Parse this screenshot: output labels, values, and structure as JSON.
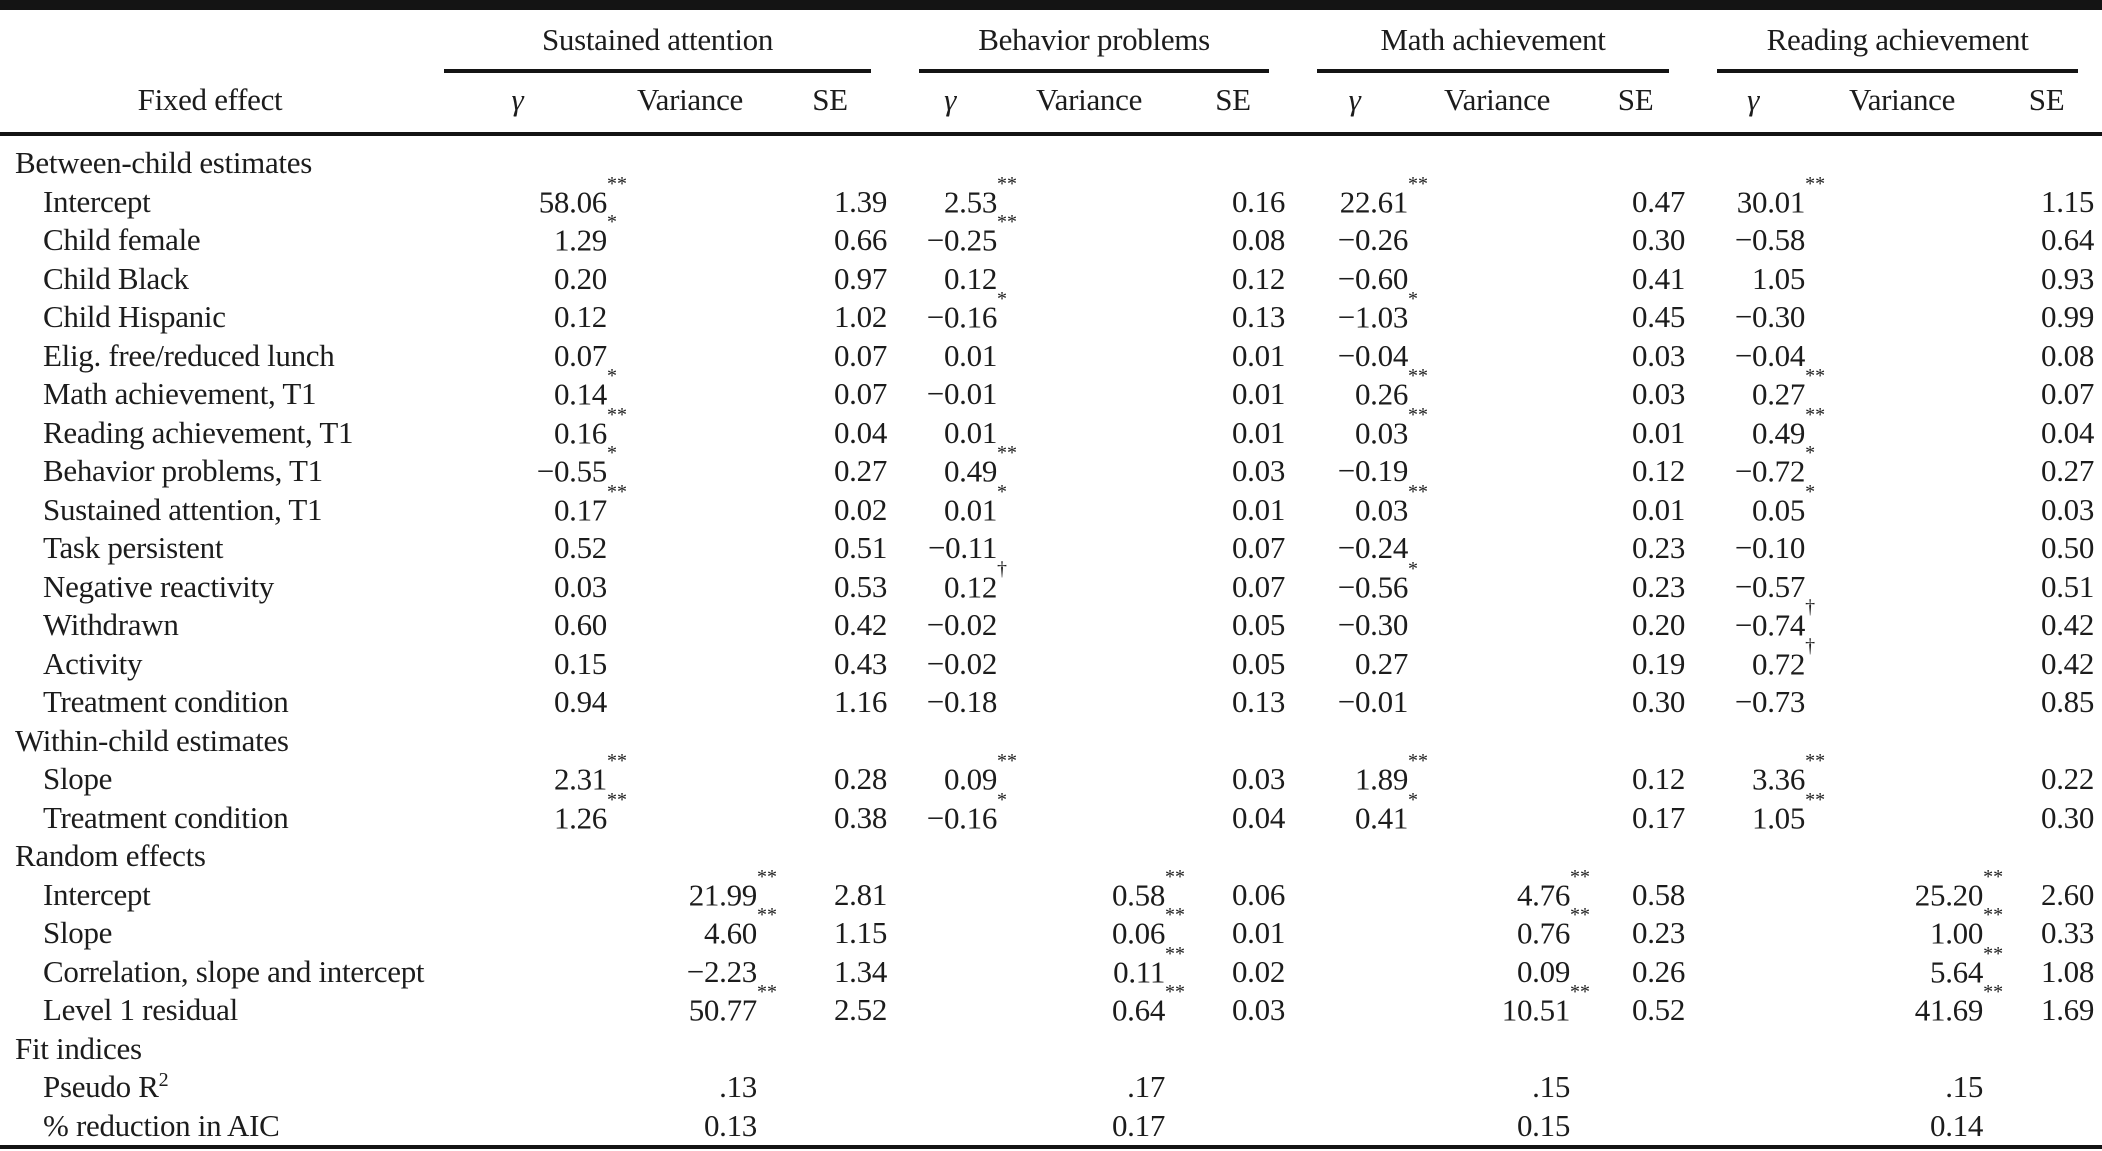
{
  "table": {
    "row_header": "Fixed effect",
    "groups": [
      {
        "label": "Sustained attention"
      },
      {
        "label": "Behavior problems"
      },
      {
        "label": "Math achievement"
      },
      {
        "label": "Reading achievement"
      }
    ],
    "sub_headers": [
      "γ",
      "Variance",
      "SE"
    ],
    "sig_legend": {
      "dagger": "†",
      "star": "*",
      "double_star": "**"
    },
    "rule_color": "#141414",
    "rows": [
      {
        "type": "section",
        "label": "Between-child estimates",
        "cells": [
          "",
          "",
          "",
          "",
          "",
          "",
          "",
          "",
          "",
          "",
          "",
          ""
        ]
      },
      {
        "type": "item",
        "label": "Intercept",
        "cells": [
          "58.06**",
          "",
          "1.39",
          "2.53**",
          "",
          "0.16",
          "22.61**",
          "",
          "0.47",
          "30.01**",
          "",
          "1.15"
        ]
      },
      {
        "type": "item",
        "label": "Child female",
        "cells": [
          "1.29*",
          "",
          "0.66",
          "−0.25**",
          "",
          "0.08",
          "−0.26",
          "",
          "0.30",
          "−0.58",
          "",
          "0.64"
        ]
      },
      {
        "type": "item",
        "label": "Child Black",
        "cells": [
          "0.20",
          "",
          "0.97",
          "0.12",
          "",
          "0.12",
          "−0.60",
          "",
          "0.41",
          "1.05",
          "",
          "0.93"
        ]
      },
      {
        "type": "item",
        "label": "Child Hispanic",
        "cells": [
          "0.12",
          "",
          "1.02",
          "−0.16*",
          "",
          "0.13",
          "−1.03*",
          "",
          "0.45",
          "−0.30",
          "",
          "0.99"
        ]
      },
      {
        "type": "item",
        "label": "Elig. free/reduced lunch",
        "cells": [
          "0.07",
          "",
          "0.07",
          "0.01",
          "",
          "0.01",
          "−0.04",
          "",
          "0.03",
          "−0.04",
          "",
          "0.08"
        ]
      },
      {
        "type": "item",
        "label": "Math achievement, T1",
        "cells": [
          "0.14*",
          "",
          "0.07",
          "−0.01",
          "",
          "0.01",
          "0.26**",
          "",
          "0.03",
          "0.27**",
          "",
          "0.07"
        ]
      },
      {
        "type": "item",
        "label": "Reading achievement, T1",
        "cells": [
          "0.16**",
          "",
          "0.04",
          "0.01",
          "",
          "0.01",
          "0.03**",
          "",
          "0.01",
          "0.49**",
          "",
          "0.04"
        ]
      },
      {
        "type": "item",
        "label": "Behavior problems, T1",
        "cells": [
          "−0.55*",
          "",
          "0.27",
          "0.49**",
          "",
          "0.03",
          "−0.19",
          "",
          "0.12",
          "−0.72*",
          "",
          "0.27"
        ]
      },
      {
        "type": "item",
        "label": "Sustained attention, T1",
        "cells": [
          "0.17**",
          "",
          "0.02",
          "0.01*",
          "",
          "0.01",
          "0.03**",
          "",
          "0.01",
          "0.05*",
          "",
          "0.03"
        ]
      },
      {
        "type": "item",
        "label": "Task persistent",
        "cells": [
          "0.52",
          "",
          "0.51",
          "−0.11",
          "",
          "0.07",
          "−0.24",
          "",
          "0.23",
          "−0.10",
          "",
          "0.50"
        ]
      },
      {
        "type": "item",
        "label": "Negative reactivity",
        "cells": [
          "0.03",
          "",
          "0.53",
          "0.12†",
          "",
          "0.07",
          "−0.56*",
          "",
          "0.23",
          "−0.57",
          "",
          "0.51"
        ]
      },
      {
        "type": "item",
        "label": "Withdrawn",
        "cells": [
          "0.60",
          "",
          "0.42",
          "−0.02",
          "",
          "0.05",
          "−0.30",
          "",
          "0.20",
          "−0.74†",
          "",
          "0.42"
        ]
      },
      {
        "type": "item",
        "label": "Activity",
        "cells": [
          "0.15",
          "",
          "0.43",
          "−0.02",
          "",
          "0.05",
          "0.27",
          "",
          "0.19",
          "0.72†",
          "",
          "0.42"
        ]
      },
      {
        "type": "item",
        "label": "Treatment condition",
        "cells": [
          "0.94",
          "",
          "1.16",
          "−0.18",
          "",
          "0.13",
          "−0.01",
          "",
          "0.30",
          "−0.73",
          "",
          "0.85"
        ]
      },
      {
        "type": "section",
        "label": "Within-child estimates",
        "cells": [
          "",
          "",
          "",
          "",
          "",
          "",
          "",
          "",
          "",
          "",
          "",
          ""
        ]
      },
      {
        "type": "item",
        "label": "Slope",
        "cells": [
          "2.31**",
          "",
          "0.28",
          "0.09**",
          "",
          "0.03",
          "1.89**",
          "",
          "0.12",
          "3.36**",
          "",
          "0.22"
        ]
      },
      {
        "type": "item",
        "label": "Treatment condition",
        "cells": [
          "1.26**",
          "",
          "0.38",
          "−0.16*",
          "",
          "0.04",
          "0.41*",
          "",
          "0.17",
          "1.05**",
          "",
          "0.30"
        ]
      },
      {
        "type": "section",
        "label": "Random effects",
        "cells": [
          "",
          "",
          "",
          "",
          "",
          "",
          "",
          "",
          "",
          "",
          "",
          ""
        ]
      },
      {
        "type": "item",
        "label": "Intercept",
        "cells": [
          "",
          "21.99**",
          "2.81",
          "",
          "0.58**",
          "0.06",
          "",
          "4.76**",
          "0.58",
          "",
          "25.20**",
          "2.60"
        ]
      },
      {
        "type": "item",
        "label": "Slope",
        "cells": [
          "",
          "4.60**",
          "1.15",
          "",
          "0.06**",
          "0.01",
          "",
          "0.76**",
          "0.23",
          "",
          "1.00**",
          "0.33"
        ]
      },
      {
        "type": "item",
        "label": "Correlation, slope and intercept",
        "cells": [
          "",
          "−2.23",
          "1.34",
          "",
          "0.11**",
          "0.02",
          "",
          "0.09",
          "0.26",
          "",
          "5.64**",
          "1.08"
        ]
      },
      {
        "type": "item",
        "label": "Level 1 residual",
        "cells": [
          "",
          "50.77**",
          "2.52",
          "",
          "0.64**",
          "0.03",
          "",
          "10.51**",
          "0.52",
          "",
          "41.69**",
          "1.69"
        ]
      },
      {
        "type": "section",
        "label": "Fit indices",
        "cells": [
          "",
          "",
          "",
          "",
          "",
          "",
          "",
          "",
          "",
          "",
          "",
          ""
        ]
      },
      {
        "type": "item",
        "label": "Pseudo R",
        "label_sup": "2",
        "cells": [
          "",
          ".13",
          "",
          "",
          ".17",
          "",
          "",
          ".15",
          "",
          "",
          ".15",
          ""
        ]
      },
      {
        "type": "item",
        "label": "% reduction in AIC",
        "cells": [
          "",
          "0.13",
          "",
          "",
          "0.17",
          "",
          "",
          "0.15",
          "",
          "",
          "0.14",
          ""
        ]
      }
    ]
  }
}
